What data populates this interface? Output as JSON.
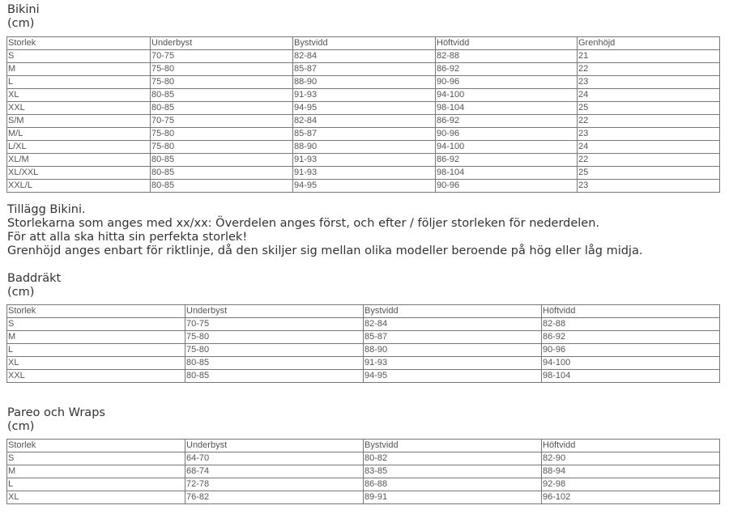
{
  "bikini": {
    "title": "Bikini",
    "unit": "(cm)",
    "headers": [
      "Storlek",
      "Underbyst",
      "Bystvidd",
      "Höftvidd",
      "Grenhöjd"
    ],
    "rows": [
      [
        "S",
        "70-75",
        "82-84",
        "82-88",
        "21"
      ],
      [
        "M",
        "75-80",
        "85-87",
        "86-92",
        "22"
      ],
      [
        "L",
        "75-80",
        "88-90",
        "90-96",
        "23"
      ],
      [
        "XL",
        "80-85",
        "91-93",
        "94-100",
        "24"
      ],
      [
        "XXL",
        "80-85",
        "94-95",
        "98-104",
        "25"
      ],
      [
        "S/M",
        "70-75",
        "82-84",
        "86-92",
        "22"
      ],
      [
        "M/L",
        "75-80",
        "85-87",
        "90-96",
        "23"
      ],
      [
        "L/XL",
        "75-80",
        "88-90",
        "94-100",
        "24"
      ],
      [
        "XL/M",
        "80-85",
        "91-93",
        "86-92",
        "22"
      ],
      [
        "XL/XXL",
        "80-85",
        "91-93",
        "98-104",
        "25"
      ],
      [
        "XXL/L",
        "80-85",
        "94-95",
        "90-96",
        "23"
      ]
    ]
  },
  "notes": [
    "Tillägg Bikini.",
    "Storlekarna som anges med xx/xx: Överdelen anges först, och efter / följer storleken för nederdelen.",
    "För att alla ska hitta sin perfekta storlek!",
    "Grenhöjd anges enbart för riktlinje, då den skiljer sig mellan olika modeller beroende på hög eller låg midja."
  ],
  "baddrakt": {
    "title": "Baddräkt",
    "unit": "(cm)",
    "headers": [
      "Storlek",
      "Underbyst",
      "Bystvidd",
      "Höftvidd"
    ],
    "rows": [
      [
        "S",
        "70-75",
        "82-84",
        "82-88"
      ],
      [
        "M",
        "75-80",
        "85-87",
        "86-92"
      ],
      [
        "L",
        "75-80",
        "88-90",
        "90-96"
      ],
      [
        "XL",
        "80-85",
        "91-93",
        "94-100"
      ],
      [
        "XXL",
        "80-85",
        "94-95",
        "98-104"
      ]
    ]
  },
  "pareo": {
    "title": "Pareo och Wraps",
    "unit": "(cm)",
    "headers": [
      "Storlek",
      "Underbyst",
      "Bystvidd",
      "Höftvidd"
    ],
    "rows": [
      [
        "S",
        "64-70",
        "80-82",
        "82-90"
      ],
      [
        "M",
        "68-74",
        "83-85",
        "88-94"
      ],
      [
        "L",
        "72-78",
        "86-88",
        "92-98"
      ],
      [
        "XL",
        "76-82",
        "89-91",
        "96-102"
      ]
    ]
  }
}
